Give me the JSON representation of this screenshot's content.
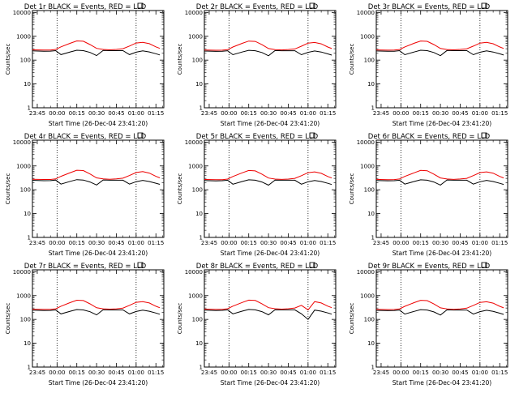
{
  "colors": {
    "events": "#000000",
    "lld": "#ee0000",
    "axis": "#000000",
    "background": "#ffffff"
  },
  "common": {
    "xlabel": "Start Time (26-Dec-04 23:41:20)",
    "ylabel": "Counts/sec",
    "x_tick_labels": [
      "23:45",
      "00:00",
      "00:15",
      "00:30",
      "00:45",
      "01:00",
      "01:15"
    ],
    "y_tick_labels": [
      "1",
      "10",
      "100",
      "1000",
      "10000"
    ]
  },
  "chart_data": [
    {
      "type": "line",
      "title": "Det 1r BLACK = Events, RED = LLD",
      "xlabel": "Start Time (26-Dec-04 23:41:20)",
      "ylabel": "Counts/sec",
      "y_scale": "log",
      "ylim": [
        1,
        12000
      ],
      "x": [
        "23:41:20",
        "23:50",
        "23:55",
        "23:59",
        "00:03",
        "00:10",
        "00:15",
        "00:20",
        "00:25",
        "00:30",
        "00:35",
        "00:40",
        "00:45",
        "00:50",
        "00:55",
        "01:00",
        "01:05",
        "01:10",
        "01:15",
        "01:18"
      ],
      "series": [
        {
          "name": "Events",
          "values": [
            245,
            235,
            238,
            250,
            170,
            220,
            260,
            250,
            210,
            155,
            255,
            250,
            250,
            250,
            170,
            215,
            245,
            220,
            185,
            165
          ]
        },
        {
          "name": "LLD",
          "values": [
            270,
            265,
            265,
            280,
            360,
            510,
            640,
            620,
            450,
            310,
            280,
            270,
            280,
            300,
            390,
            520,
            560,
            490,
            360,
            310
          ]
        }
      ],
      "markers": [
        "00:00",
        "01:00"
      ]
    },
    {
      "type": "line",
      "title": "Det 2r BLACK = Events, RED = LLD",
      "xlabel": "Start Time (26-Dec-04 23:41:20)",
      "ylabel": "Counts/sec",
      "y_scale": "log",
      "ylim": [
        1,
        12000
      ],
      "x": [
        "23:41:20",
        "23:50",
        "23:55",
        "23:59",
        "00:03",
        "00:10",
        "00:15",
        "00:20",
        "00:25",
        "00:30",
        "00:35",
        "00:40",
        "00:45",
        "00:50",
        "00:55",
        "01:00",
        "01:05",
        "01:10",
        "01:15",
        "01:18"
      ],
      "series": [
        {
          "name": "Events",
          "values": [
            240,
            232,
            236,
            248,
            168,
            218,
            258,
            248,
            208,
            152,
            252,
            248,
            248,
            248,
            168,
            212,
            242,
            218,
            182,
            162
          ]
        },
        {
          "name": "LLD",
          "values": [
            265,
            260,
            262,
            275,
            355,
            505,
            630,
            610,
            445,
            305,
            275,
            268,
            278,
            295,
            385,
            515,
            550,
            480,
            355,
            305
          ]
        }
      ],
      "markers": [
        "00:00",
        "01:00"
      ]
    },
    {
      "type": "line",
      "title": "Det 3r BLACK = Events, RED = LLD",
      "xlabel": "Start Time (26-Dec-04 23:41:20)",
      "ylabel": "Counts/sec",
      "y_scale": "log",
      "ylim": [
        1,
        12000
      ],
      "x": [
        "23:41:20",
        "23:50",
        "23:55",
        "23:59",
        "00:03",
        "00:10",
        "00:15",
        "00:20",
        "00:25",
        "00:30",
        "00:35",
        "00:40",
        "00:45",
        "00:50",
        "00:55",
        "01:00",
        "01:05",
        "01:10",
        "01:15",
        "01:18"
      ],
      "series": [
        {
          "name": "Events",
          "values": [
            242,
            234,
            237,
            249,
            169,
            219,
            259,
            249,
            209,
            154,
            254,
            249,
            249,
            249,
            169,
            214,
            244,
            219,
            184,
            164
          ]
        },
        {
          "name": "LLD",
          "values": [
            268,
            262,
            263,
            278,
            358,
            508,
            635,
            615,
            448,
            308,
            278,
            270,
            280,
            298,
            388,
            518,
            555,
            485,
            358,
            308
          ]
        }
      ],
      "markers": [
        "00:00",
        "01:00"
      ]
    },
    {
      "type": "line",
      "title": "Det 4r BLACK = Events, RED = LLD",
      "xlabel": "Start Time (26-Dec-04 23:41:20)",
      "ylabel": "Counts/sec",
      "y_scale": "log",
      "ylim": [
        1,
        12000
      ],
      "x": [
        "23:41:20",
        "23:50",
        "23:55",
        "23:59",
        "00:03",
        "00:10",
        "00:15",
        "00:20",
        "00:25",
        "00:30",
        "00:35",
        "00:40",
        "00:45",
        "00:50",
        "00:55",
        "01:00",
        "01:05",
        "01:10",
        "01:15",
        "01:18"
      ],
      "series": [
        {
          "name": "Events",
          "values": [
            250,
            240,
            242,
            255,
            172,
            225,
            265,
            255,
            212,
            158,
            258,
            252,
            252,
            252,
            172,
            218,
            248,
            222,
            188,
            168
          ]
        },
        {
          "name": "LLD",
          "values": [
            275,
            270,
            270,
            285,
            365,
            520,
            660,
            640,
            460,
            315,
            285,
            275,
            285,
            305,
            395,
            530,
            575,
            500,
            365,
            315
          ]
        }
      ],
      "markers": [
        "00:00",
        "01:00"
      ]
    },
    {
      "type": "line",
      "title": "Det 5r BLACK = Events, RED = LLD",
      "xlabel": "Start Time (26-Dec-04 23:41:20)",
      "ylabel": "Counts/sec",
      "y_scale": "log",
      "ylim": [
        1,
        12000
      ],
      "x": [
        "23:41:20",
        "23:50",
        "23:55",
        "23:59",
        "00:03",
        "00:10",
        "00:15",
        "00:20",
        "00:25",
        "00:30",
        "00:35",
        "00:40",
        "00:45",
        "00:50",
        "00:55",
        "01:00",
        "01:05",
        "01:10",
        "01:15",
        "01:18"
      ],
      "series": [
        {
          "name": "Events",
          "values": [
            244,
            236,
            239,
            251,
            171,
            221,
            261,
            251,
            211,
            156,
            256,
            251,
            251,
            251,
            171,
            216,
            246,
            221,
            186,
            166
          ]
        },
        {
          "name": "LLD",
          "values": [
            270,
            265,
            266,
            281,
            361,
            511,
            642,
            621,
            451,
            311,
            281,
            271,
            281,
            301,
            391,
            521,
            561,
            491,
            361,
            311
          ]
        }
      ],
      "markers": [
        "00:00",
        "01:00"
      ]
    },
    {
      "type": "line",
      "title": "Det 6r BLACK = Events, RED = LLD",
      "xlabel": "Start Time (26-Dec-04 23:41:20)",
      "ylabel": "Counts/sec",
      "y_scale": "log",
      "ylim": [
        1,
        12000
      ],
      "x": [
        "23:41:20",
        "23:50",
        "23:55",
        "23:59",
        "00:03",
        "00:10",
        "00:15",
        "00:20",
        "00:25",
        "00:30",
        "00:35",
        "00:40",
        "00:45",
        "00:50",
        "00:55",
        "01:00",
        "01:05",
        "01:10",
        "01:15",
        "01:18"
      ],
      "series": [
        {
          "name": "Events",
          "values": [
            246,
            238,
            240,
            252,
            172,
            222,
            262,
            252,
            212,
            157,
            257,
            252,
            252,
            252,
            172,
            217,
            247,
            222,
            187,
            167
          ]
        },
        {
          "name": "LLD",
          "values": [
            272,
            266,
            267,
            282,
            362,
            514,
            650,
            628,
            454,
            312,
            282,
            272,
            282,
            302,
            392,
            524,
            565,
            495,
            362,
            312
          ]
        }
      ],
      "markers": [
        "00:00",
        "01:00"
      ]
    },
    {
      "type": "line",
      "title": "Det 7r BLACK = Events, RED = LLD",
      "xlabel": "Start Time (26-Dec-04 23:41:20)",
      "ylabel": "Counts/sec",
      "y_scale": "log",
      "ylim": [
        1,
        12000
      ],
      "x": [
        "23:41:20",
        "23:50",
        "23:55",
        "23:59",
        "00:03",
        "00:10",
        "00:15",
        "00:20",
        "00:25",
        "00:30",
        "00:35",
        "00:40",
        "00:45",
        "00:50",
        "00:55",
        "01:00",
        "01:05",
        "01:10",
        "01:15",
        "01:18"
      ],
      "series": [
        {
          "name": "Events",
          "values": [
            243,
            235,
            238,
            250,
            170,
            220,
            260,
            250,
            210,
            155,
            255,
            250,
            250,
            250,
            170,
            215,
            245,
            220,
            185,
            165
          ]
        },
        {
          "name": "LLD",
          "values": [
            268,
            263,
            264,
            279,
            359,
            509,
            638,
            618,
            449,
            309,
            279,
            269,
            279,
            299,
            389,
            519,
            558,
            488,
            359,
            309
          ]
        }
      ],
      "markers": [
        "00:00",
        "01:00"
      ]
    },
    {
      "type": "line",
      "title": "Det 8r BLACK = Events, RED = LLD",
      "xlabel": "Start Time (26-Dec-04 23:41:20)",
      "ylabel": "Counts/sec",
      "y_scale": "log",
      "ylim": [
        1,
        12000
      ],
      "x": [
        "23:41:20",
        "23:50",
        "23:55",
        "23:59",
        "00:03",
        "00:10",
        "00:15",
        "00:20",
        "00:25",
        "00:30",
        "00:35",
        "00:40",
        "00:45",
        "00:50",
        "00:55",
        "01:00",
        "01:05",
        "01:10",
        "01:15",
        "01:18"
      ],
      "series": [
        {
          "name": "Events",
          "values": [
            245,
            237,
            239,
            251,
            171,
            221,
            261,
            251,
            211,
            156,
            256,
            251,
            251,
            251,
            171,
            100,
            246,
            221,
            186,
            166
          ]
        },
        {
          "name": "LLD",
          "values": [
            270,
            264,
            265,
            280,
            360,
            512,
            645,
            625,
            452,
            310,
            280,
            270,
            280,
            300,
            390,
            250,
            560,
            490,
            360,
            310
          ]
        }
      ],
      "markers": [
        "00:00",
        "01:00"
      ]
    },
    {
      "type": "line",
      "title": "Det 9r BLACK = Events, RED = LLD",
      "xlabel": "Start Time (26-Dec-04 23:41:20)",
      "ylabel": "Counts/sec",
      "y_scale": "log",
      "ylim": [
        1,
        12000
      ],
      "x": [
        "23:41:20",
        "23:50",
        "23:55",
        "23:59",
        "00:03",
        "00:10",
        "00:15",
        "00:20",
        "00:25",
        "00:30",
        "00:35",
        "00:40",
        "00:45",
        "00:50",
        "00:55",
        "01:00",
        "01:05",
        "01:10",
        "01:15",
        "01:18"
      ],
      "series": [
        {
          "name": "Events",
          "values": [
            240,
            232,
            235,
            247,
            167,
            217,
            257,
            247,
            207,
            152,
            252,
            247,
            247,
            247,
            167,
            212,
            242,
            217,
            182,
            162
          ]
        },
        {
          "name": "LLD",
          "values": [
            266,
            260,
            261,
            276,
            356,
            506,
            632,
            612,
            446,
            306,
            276,
            266,
            276,
            296,
            386,
            516,
            552,
            482,
            356,
            306
          ]
        }
      ],
      "markers": [
        "00:00",
        "01:00"
      ]
    }
  ]
}
